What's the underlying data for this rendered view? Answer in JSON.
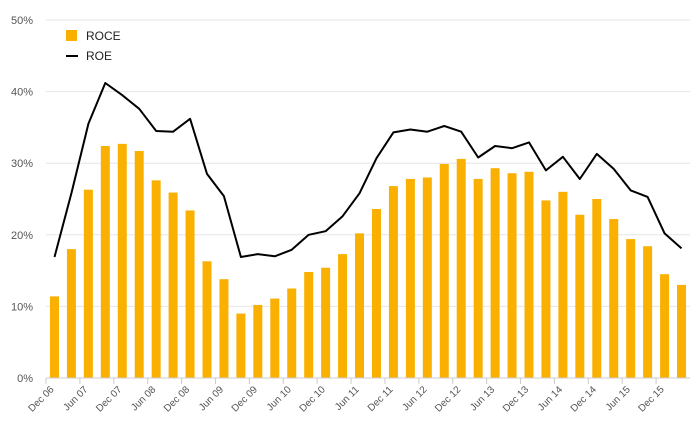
{
  "chart_data": {
    "type": "bar",
    "title": "",
    "xlabel": "",
    "ylabel": "",
    "ylim": [
      0,
      50
    ],
    "y_ticks": [
      "0%",
      "10%",
      "20%",
      "30%",
      "40%",
      "50%"
    ],
    "grid": "horizontal",
    "legend_position": "top-left",
    "categories": [
      "Dec 06",
      "Mar 07",
      "Jun 07",
      "Sep 07",
      "Dec 07",
      "Mar 08",
      "Jun 08",
      "Sep 08",
      "Dec 08",
      "Mar 09",
      "Jun 09",
      "Sep 09",
      "Dec 09",
      "Mar 10",
      "Jun 10",
      "Sep 10",
      "Dec 10",
      "Mar 11",
      "Jun 11",
      "Sep 11",
      "Dec 11",
      "Mar 12",
      "Jun 12",
      "Sep 12",
      "Dec 12",
      "Mar 13",
      "Jun 13",
      "Sep 13",
      "Dec 13",
      "Mar 14",
      "Jun 14",
      "Sep 14",
      "Dec 14",
      "Mar 15",
      "Jun 15",
      "Sep 15",
      "Dec 15",
      "Mar 16"
    ],
    "x_tick_labels": [
      "Dec 06",
      "Jun 07",
      "Dec 07",
      "Jun 08",
      "Dec 08",
      "Jun 09",
      "Dec 09",
      "Jun 10",
      "Dec 10",
      "Jun 11",
      "Dec 11",
      "Jun 12",
      "Dec 12",
      "Jun 13",
      "Dec 13",
      "Jun 14",
      "Dec 14",
      "Jun 15",
      "Dec 15"
    ],
    "series": [
      {
        "name": "ROCE",
        "type": "bar",
        "color": "#F9B000",
        "values": [
          11.4,
          18.0,
          26.3,
          32.4,
          32.7,
          31.7,
          27.6,
          25.9,
          23.4,
          16.3,
          13.8,
          9.0,
          10.2,
          11.1,
          12.5,
          14.8,
          15.4,
          17.3,
          20.2,
          23.6,
          26.8,
          27.8,
          28.0,
          29.9,
          30.6,
          27.8,
          29.3,
          28.6,
          28.8,
          24.8,
          26.0,
          22.8,
          25.0,
          22.2,
          19.4,
          18.4,
          14.5,
          13.0
        ]
      },
      {
        "name": "ROE",
        "type": "line",
        "color": "#000000",
        "values": [
          16.9,
          25.8,
          35.5,
          41.2,
          39.5,
          37.6,
          34.5,
          34.4,
          36.2,
          28.5,
          25.4,
          16.9,
          17.3,
          17.0,
          17.9,
          20.0,
          20.5,
          22.6,
          25.8,
          30.7,
          34.3,
          34.7,
          34.4,
          35.2,
          34.4,
          30.8,
          32.4,
          32.1,
          32.9,
          29.0,
          30.9,
          27.8,
          31.3,
          29.2,
          26.2,
          25.3,
          20.2,
          18.1
        ]
      }
    ]
  }
}
